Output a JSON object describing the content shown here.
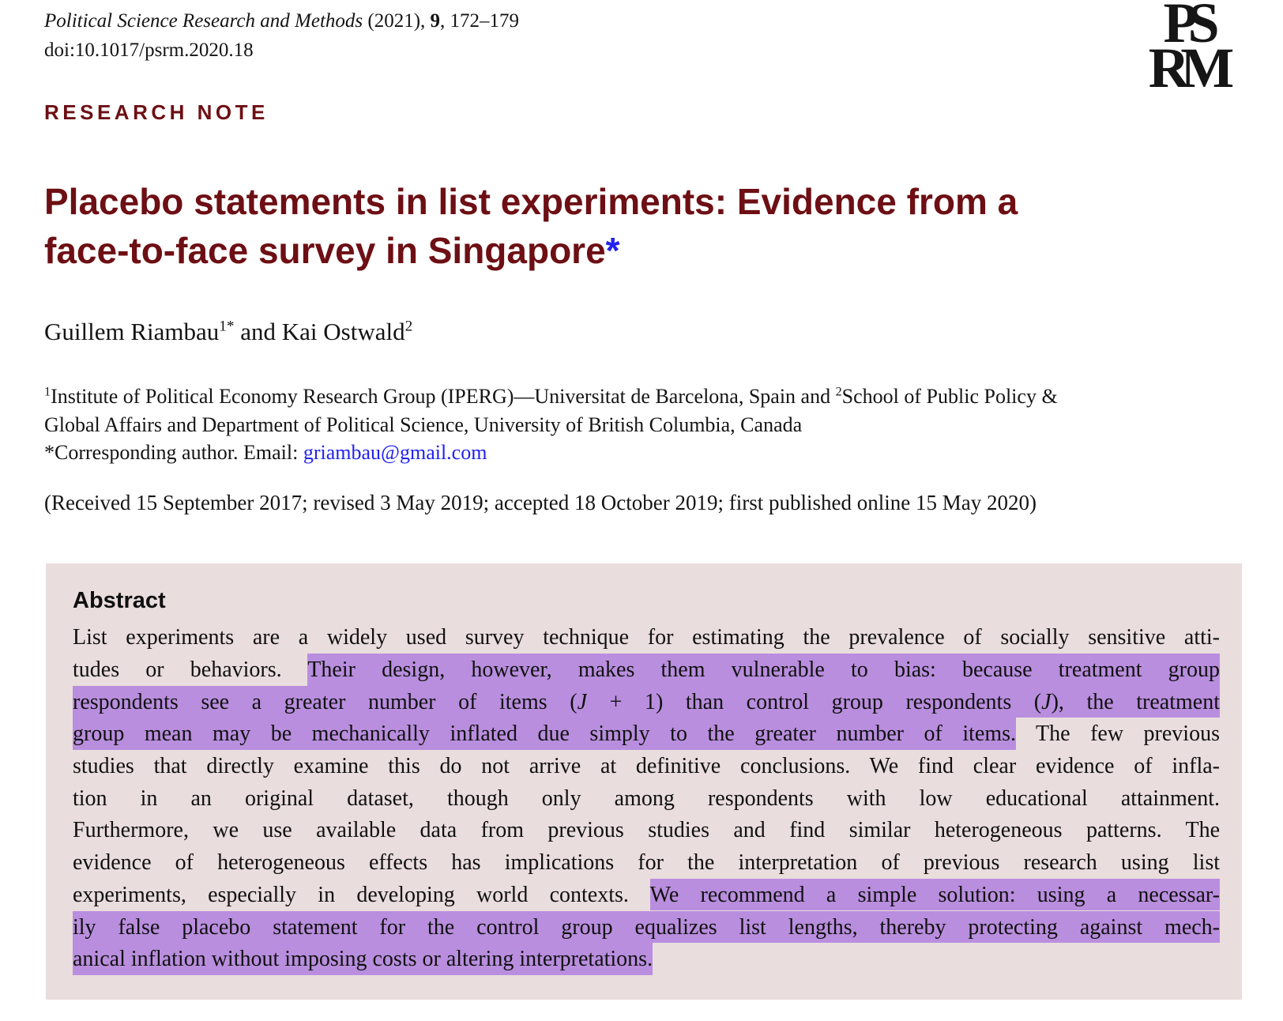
{
  "colors": {
    "maroon": "#6d0f14",
    "asterisk_blue": "#2222ee",
    "link_blue": "#2222ee",
    "highlight_purple": "#b98ede",
    "abstract_background": "#eadddd"
  },
  "header": {
    "journal_line": [
      {
        "t": "Political Science Research and Methods",
        "i": true
      },
      {
        "t": " (2021), "
      },
      {
        "t": "9",
        "b": true
      },
      {
        "t": ", 172–179"
      }
    ],
    "doi": "doi:10.1017/psrm.2020.18",
    "logo_top": "PS",
    "logo_bottom": "RM",
    "section_label": "RESEARCH NOTE"
  },
  "title": {
    "line1": "Placebo statements in list experiments: Evidence from a",
    "line2": "face-to-face survey in Singapore",
    "asterisk": "*"
  },
  "authors": [
    {
      "t": "Guillem Riambau"
    },
    {
      "t": "1*",
      "sup": true
    },
    {
      "t": " and Kai Ostwald"
    },
    {
      "t": "2",
      "sup": true
    }
  ],
  "affiliation": {
    "line1": [
      {
        "t": "1",
        "sup": true
      },
      {
        "t": "Institute of Political Economy Research Group (IPERG)—Universitat de Barcelona, Spain and "
      },
      {
        "t": "2",
        "sup": true
      },
      {
        "t": "School of Public Policy &"
      }
    ],
    "line2": "Global Affairs and Department of Political Science, University of British Columbia, Canada",
    "corresponding_prefix": "*Corresponding author. Email: ",
    "email": "griambau@gmail.com"
  },
  "received": "(Received 15 September 2017; revised 3 May 2019; accepted 18 October 2019; first published online 15 May 2020)",
  "abstract": {
    "heading": "Abstract",
    "lines": [
      [
        {
          "t": "List experiments are a widely used survey technique for estimating the prevalence of socially sensitive atti-"
        }
      ],
      [
        {
          "t": "tudes or behaviors. "
        },
        {
          "t": "Their design, however, makes them vulnerable to bias: because treatment group",
          "h": true
        }
      ],
      [
        {
          "t": "respondents see a greater number of items (",
          "h": true
        },
        {
          "t": "J",
          "h": true,
          "i": true
        },
        {
          "t": " + 1) than control group respondents (",
          "h": true
        },
        {
          "t": "J",
          "h": true,
          "i": true
        },
        {
          "t": "), the treatment",
          "h": true
        }
      ],
      [
        {
          "t": "group mean may be mechanically inflated due simply to the greater number of items.",
          "h": true
        },
        {
          "t": " The few previous"
        }
      ],
      [
        {
          "t": "studies that directly examine this do not arrive at definitive conclusions. We find clear evidence of infla-"
        }
      ],
      [
        {
          "t": "tion in an original dataset, though only among respondents with low educational attainment."
        }
      ],
      [
        {
          "t": "Furthermore, we use available data from previous studies and find similar heterogeneous patterns. The"
        }
      ],
      [
        {
          "t": "evidence of heterogeneous effects has implications for the interpretation of previous research using list"
        }
      ],
      [
        {
          "t": "experiments, especially in developing world contexts. "
        },
        {
          "t": "We recommend a simple solution: using a necessar-",
          "h": true
        }
      ],
      [
        {
          "t": "ily false placebo statement for the control group equalizes list lengths, thereby protecting against mech-",
          "h": true
        }
      ],
      [
        {
          "t": "anical inflation without imposing costs or altering interpretations.",
          "h": true
        }
      ]
    ]
  }
}
